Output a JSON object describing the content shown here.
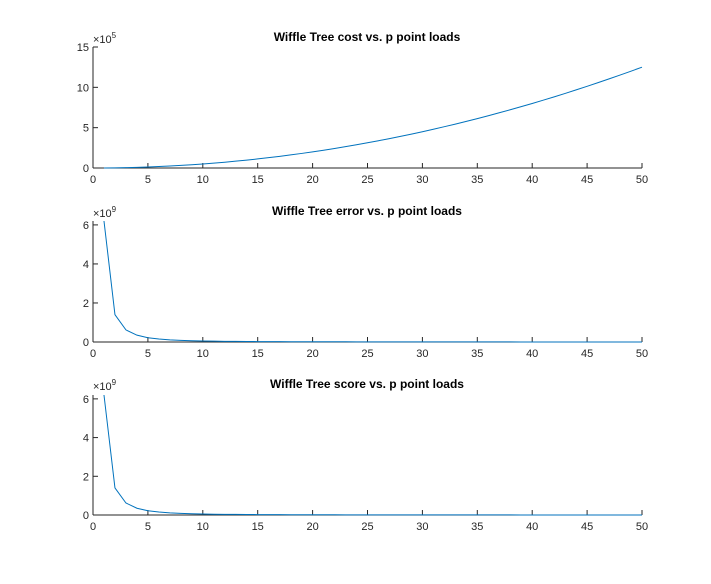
{
  "chart_data": [
    {
      "type": "line",
      "title": "Wiffle Tree cost vs. p point loads",
      "xlabel": "",
      "ylabel": "",
      "xlim": [
        0,
        50
      ],
      "ylim": [
        0,
        15
      ],
      "y_exponent_label": "×10",
      "y_exponent_power": "5",
      "x_ticks": [
        "0",
        "5",
        "10",
        "15",
        "20",
        "25",
        "30",
        "35",
        "40",
        "45",
        "50"
      ],
      "y_ticks": [
        "0",
        "5",
        "10",
        "15"
      ],
      "grid": false,
      "series_color": "#0072BD",
      "series": [
        {
          "x": [
            1,
            2,
            3,
            4,
            5,
            6,
            7,
            8,
            9,
            10,
            11,
            12,
            13,
            14,
            15,
            16,
            17,
            18,
            19,
            20,
            21,
            22,
            23,
            24,
            25,
            26,
            27,
            28,
            29,
            30,
            31,
            32,
            33,
            34,
            35,
            36,
            37,
            38,
            39,
            40,
            41,
            42,
            43,
            44,
            45,
            46,
            47,
            48,
            49,
            50
          ],
          "values": [
            0.005,
            0.02,
            0.045,
            0.08,
            0.125,
            0.18,
            0.245,
            0.32,
            0.405,
            0.5,
            0.605,
            0.72,
            0.845,
            0.98,
            1.125,
            1.28,
            1.445,
            1.62,
            1.805,
            2.0,
            2.205,
            2.42,
            2.645,
            2.88,
            3.125,
            3.38,
            3.645,
            3.92,
            4.205,
            4.5,
            4.805,
            5.12,
            5.445,
            5.78,
            6.125,
            6.48,
            6.845,
            7.22,
            7.605,
            8.0,
            8.405,
            8.82,
            9.245,
            9.68,
            10.125,
            10.58,
            11.045,
            11.52,
            12.005,
            12.5
          ]
        }
      ]
    },
    {
      "type": "line",
      "title": "Wiffle Tree error vs. p point loads",
      "xlabel": "",
      "ylabel": "",
      "xlim": [
        0,
        50
      ],
      "ylim": [
        0,
        6.2
      ],
      "y_exponent_label": "×10",
      "y_exponent_power": "9",
      "x_ticks": [
        "0",
        "5",
        "10",
        "15",
        "20",
        "25",
        "30",
        "35",
        "40",
        "45",
        "50"
      ],
      "y_ticks": [
        "0",
        "2",
        "4",
        "6"
      ],
      "grid": false,
      "series_color": "#0072BD",
      "series": [
        {
          "x": [
            1,
            2,
            3,
            4,
            5,
            6,
            7,
            8,
            9,
            10,
            11,
            12,
            13,
            14,
            15,
            16,
            17,
            18,
            19,
            20,
            21,
            22,
            23,
            24,
            25,
            26,
            27,
            28,
            29,
            30,
            31,
            32,
            33,
            34,
            35,
            36,
            37,
            38,
            39,
            40,
            41,
            42,
            43,
            44,
            45,
            46,
            47,
            48,
            49,
            50
          ],
          "values": [
            6.2,
            1.4,
            0.62,
            0.35,
            0.22,
            0.155,
            0.11,
            0.085,
            0.065,
            0.05,
            0.042,
            0.035,
            0.03,
            0.026,
            0.022,
            0.019,
            0.017,
            0.015,
            0.014,
            0.012,
            0.011,
            0.01,
            0.0095,
            0.0088,
            0.008,
            0.0074,
            0.0069,
            0.0064,
            0.006,
            0.0056,
            0.0052,
            0.0049,
            0.0046,
            0.0043,
            0.0041,
            0.0039,
            0.0037,
            0.0035,
            0.0033,
            0.0031,
            0.003,
            0.0028,
            0.0027,
            0.0026,
            0.0025,
            0.0024,
            0.0023,
            0.0022,
            0.0021,
            0.002
          ]
        }
      ]
    },
    {
      "type": "line",
      "title": "Wiffle Tree score vs. p point loads",
      "xlabel": "",
      "ylabel": "",
      "xlim": [
        0,
        50
      ],
      "ylim": [
        0,
        6.2
      ],
      "y_exponent_label": "×10",
      "y_exponent_power": "9",
      "x_ticks": [
        "0",
        "5",
        "10",
        "15",
        "20",
        "25",
        "30",
        "35",
        "40",
        "45",
        "50"
      ],
      "y_ticks": [
        "0",
        "2",
        "4",
        "6"
      ],
      "grid": false,
      "series_color": "#0072BD",
      "series": [
        {
          "x": [
            1,
            2,
            3,
            4,
            5,
            6,
            7,
            8,
            9,
            10,
            11,
            12,
            13,
            14,
            15,
            16,
            17,
            18,
            19,
            20,
            21,
            22,
            23,
            24,
            25,
            26,
            27,
            28,
            29,
            30,
            31,
            32,
            33,
            34,
            35,
            36,
            37,
            38,
            39,
            40,
            41,
            42,
            43,
            44,
            45,
            46,
            47,
            48,
            49,
            50
          ],
          "values": [
            6.2,
            1.4,
            0.62,
            0.35,
            0.22,
            0.155,
            0.11,
            0.085,
            0.065,
            0.05,
            0.042,
            0.035,
            0.03,
            0.026,
            0.022,
            0.019,
            0.017,
            0.015,
            0.014,
            0.012,
            0.011,
            0.01,
            0.0095,
            0.0088,
            0.008,
            0.0074,
            0.0069,
            0.0064,
            0.006,
            0.0056,
            0.0052,
            0.0049,
            0.0046,
            0.0043,
            0.0041,
            0.0039,
            0.0037,
            0.0035,
            0.0033,
            0.0031,
            0.003,
            0.0028,
            0.0027,
            0.0026,
            0.0025,
            0.0024,
            0.0023,
            0.0022,
            0.0021,
            0.002
          ]
        }
      ]
    }
  ]
}
